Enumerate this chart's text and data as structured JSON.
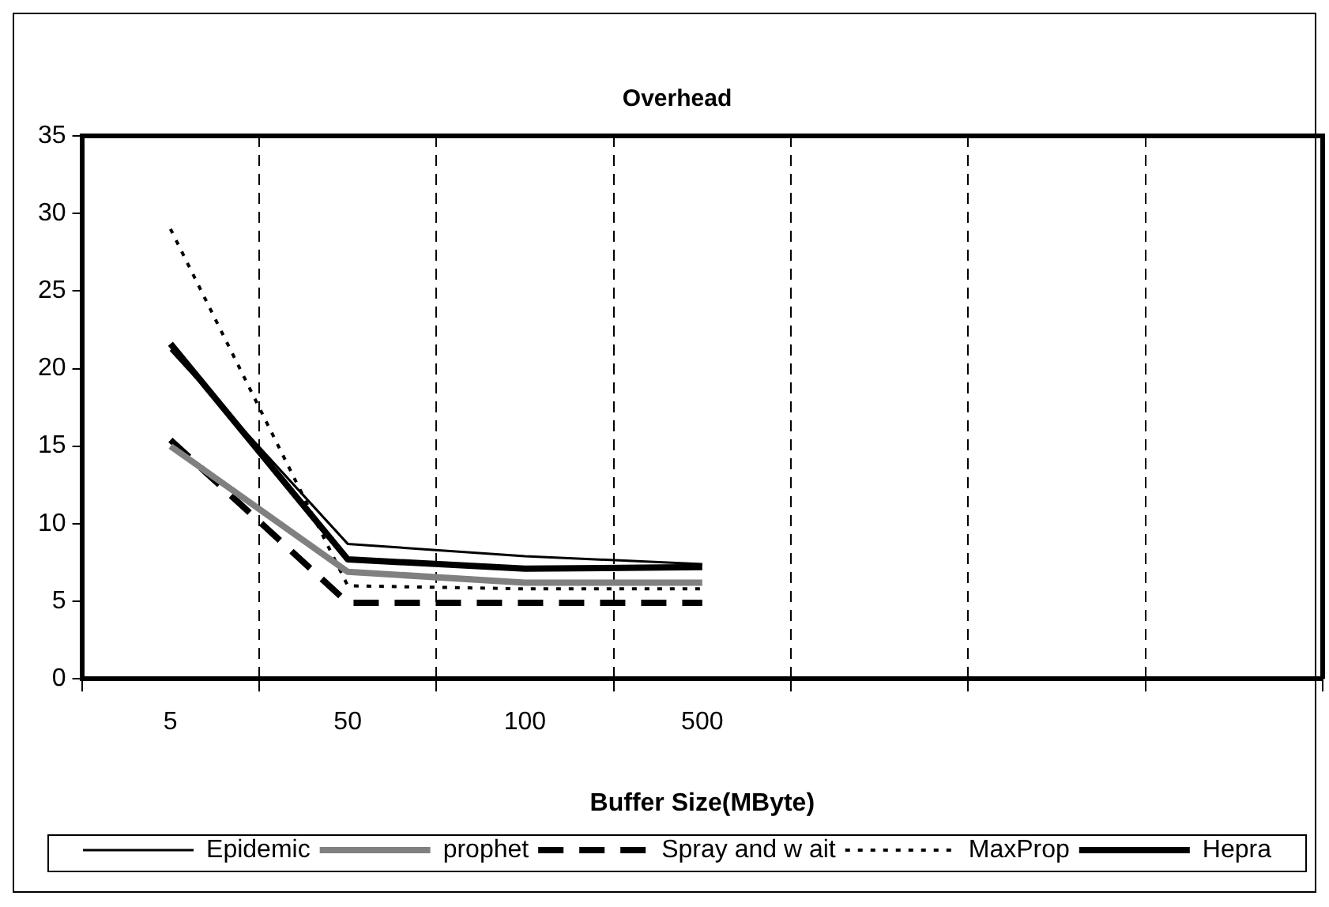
{
  "chart_data": {
    "type": "line",
    "title": "Overhead",
    "xlabel": "Buffer Size(MByte)",
    "categories": [
      "5",
      "50",
      "100",
      "500",
      null,
      null,
      null
    ],
    "series": [
      {
        "name": "Epidemic",
        "color": "#000000",
        "line_style": "solid",
        "values": [
          21.2,
          8.7,
          7.9,
          7.4,
          null,
          null,
          null
        ]
      },
      {
        "name": "prophet",
        "color": "#808080",
        "line_style": "solid",
        "values": [
          15.0,
          6.9,
          6.2,
          6.2,
          null,
          null,
          null
        ]
      },
      {
        "name": "Spray and w ait",
        "color": "#000000",
        "line_style": "dashed",
        "values": [
          15.4,
          4.9,
          4.9,
          4.9,
          null,
          null,
          null
        ]
      },
      {
        "name": "MaxProp",
        "color": "#000000",
        "line_style": "dotted",
        "values": [
          29.0,
          6.0,
          5.8,
          5.8,
          null,
          null,
          null
        ]
      },
      {
        "name": "Hepra",
        "color": "#000000",
        "line_style": "solid",
        "values": [
          21.6,
          7.7,
          7.1,
          7.2,
          null,
          null,
          null
        ]
      }
    ],
    "ylim": [
      0,
      35
    ],
    "yticks": [
      0,
      5,
      10,
      15,
      20,
      25,
      30,
      35
    ],
    "grid": "x",
    "legend": "bottom",
    "marker": "none"
  }
}
